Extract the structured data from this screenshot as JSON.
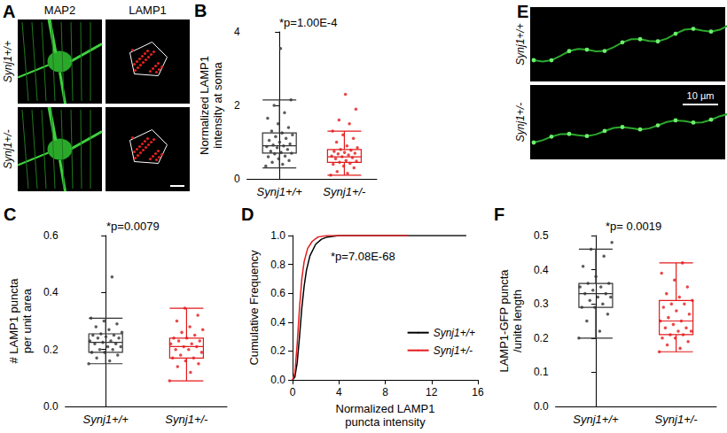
{
  "figure_panels": [
    {
      "panel": "A",
      "columns": [
        "MAP2",
        "LAMP1"
      ],
      "rows": [
        "Synj1+/+",
        "Synj1+/-"
      ]
    },
    {
      "panel": "E",
      "rows": [
        "Synj1+/+",
        "Synj1+/-"
      ],
      "scale_bar": "10 µm"
    }
  ],
  "chart_data": [
    {
      "panel": "B",
      "type": "boxplot",
      "annotation": "*p=1.00E-4",
      "y_label": "Normalized LAMP1\nintensity at soma",
      "categories": [
        "Synj1+/+",
        "Synj1+/-"
      ],
      "colors": [
        "#333333",
        "#e41a1c"
      ],
      "boxes": [
        [
          0.3,
          0.7,
          0.9,
          1.25,
          2.15
        ],
        [
          0.1,
          0.45,
          0.6,
          0.8,
          1.3
        ]
      ],
      "points": [
        [
          0.35,
          0.4,
          0.45,
          0.5,
          0.55,
          0.6,
          0.62,
          0.68,
          0.7,
          0.72,
          0.75,
          0.8,
          0.85,
          0.88,
          0.9,
          0.92,
          0.95,
          1.0,
          1.05,
          1.1,
          1.15,
          1.2,
          1.25,
          1.3,
          1.4,
          1.5,
          1.65,
          1.8,
          2.0,
          2.15,
          3.55
        ],
        [
          0.1,
          0.15,
          0.2,
          0.3,
          0.35,
          0.4,
          0.42,
          0.45,
          0.48,
          0.5,
          0.55,
          0.58,
          0.6,
          0.62,
          0.65,
          0.68,
          0.7,
          0.72,
          0.75,
          0.78,
          0.8,
          0.85,
          0.9,
          1.0,
          1.1,
          1.2,
          1.3,
          1.5,
          1.6,
          1.9,
          2.3
        ]
      ],
      "ylim": [
        0,
        4
      ],
      "yticks": [
        0,
        2,
        4
      ],
      "grid": false
    },
    {
      "panel": "C",
      "type": "boxplot",
      "annotation": "*p=0.0079",
      "y_label": "# LAMP1 puncta\nper unit area",
      "categories": [
        "Synj1+/+",
        "Synj1+/-"
      ],
      "colors": [
        "#333333",
        "#e41a1c"
      ],
      "boxes": [
        [
          0.15,
          0.19,
          0.225,
          0.255,
          0.31
        ],
        [
          0.09,
          0.17,
          0.21,
          0.24,
          0.345
        ]
      ],
      "points": [
        [
          0.15,
          0.16,
          0.17,
          0.18,
          0.19,
          0.19,
          0.2,
          0.2,
          0.21,
          0.21,
          0.22,
          0.22,
          0.225,
          0.23,
          0.23,
          0.24,
          0.24,
          0.245,
          0.25,
          0.25,
          0.255,
          0.26,
          0.27,
          0.28,
          0.29,
          0.3,
          0.31,
          0.455
        ],
        [
          0.09,
          0.12,
          0.14,
          0.15,
          0.16,
          0.17,
          0.17,
          0.18,
          0.19,
          0.2,
          0.2,
          0.21,
          0.21,
          0.22,
          0.22,
          0.23,
          0.23,
          0.24,
          0.24,
          0.25,
          0.26,
          0.27,
          0.28,
          0.3,
          0.32,
          0.345
        ]
      ],
      "ylim": [
        0,
        0.6
      ],
      "yticks": [
        {
          "value": 0,
          "label": "0.0"
        },
        0.2,
        0.4,
        0.6
      ],
      "grid": false
    },
    {
      "panel": "D",
      "type": "line",
      "annotation": "*p=7.08E-68",
      "x_label": "Normalized LAMP1\npuncta intensity",
      "y_label": "Cumulative Frequency",
      "series": [
        {
          "name": "Synj1+/+",
          "color": "#000000",
          "x": [
            0,
            0.2,
            0.4,
            0.6,
            0.8,
            1.0,
            1.2,
            1.5,
            2.0,
            2.5,
            3.0,
            4.0,
            15.0
          ],
          "values": [
            0,
            0.02,
            0.12,
            0.3,
            0.5,
            0.65,
            0.76,
            0.86,
            0.94,
            0.975,
            0.99,
            1.0,
            1.0
          ]
        },
        {
          "name": "Synj1+/-",
          "color": "#e41a1c",
          "x": [
            0,
            0.2,
            0.4,
            0.6,
            0.8,
            1.0,
            1.3,
            1.7,
            2.2,
            3.0,
            10.0
          ],
          "values": [
            0,
            0.05,
            0.25,
            0.5,
            0.7,
            0.82,
            0.91,
            0.96,
            0.99,
            1.0,
            1.0
          ]
        }
      ],
      "xlim": [
        0,
        16
      ],
      "xticks": [
        0,
        4,
        8,
        12,
        16
      ],
      "ylim": [
        0,
        1
      ],
      "yticks": [
        {
          "value": 0,
          "label": "0.0"
        },
        0.2,
        0.4,
        0.6,
        0.8,
        {
          "value": 1,
          "label": "1.0"
        }
      ],
      "legend": "right",
      "grid": false
    },
    {
      "panel": "F",
      "type": "boxplot",
      "annotation": "*p= 0.0019",
      "y_label": "LAMP1-GFP puncta\n/unite length",
      "categories": [
        "Synj1+/+",
        "Synj1+/-"
      ],
      "colors": [
        "#333333",
        "#e41a1c"
      ],
      "boxes": [
        [
          0.2,
          0.29,
          0.33,
          0.36,
          0.46
        ],
        [
          0.16,
          0.21,
          0.25,
          0.31,
          0.42
        ]
      ],
      "points": [
        [
          0.2,
          0.22,
          0.25,
          0.27,
          0.29,
          0.29,
          0.3,
          0.31,
          0.32,
          0.32,
          0.33,
          0.33,
          0.34,
          0.35,
          0.35,
          0.36,
          0.36,
          0.38,
          0.41,
          0.44,
          0.46,
          0.48
        ],
        [
          0.16,
          0.17,
          0.18,
          0.19,
          0.2,
          0.2,
          0.21,
          0.21,
          0.22,
          0.22,
          0.23,
          0.23,
          0.24,
          0.25,
          0.25,
          0.26,
          0.27,
          0.28,
          0.29,
          0.3,
          0.3,
          0.31,
          0.32,
          0.33,
          0.35,
          0.37,
          0.39,
          0.42
        ]
      ],
      "ylim": [
        0,
        0.5
      ],
      "yticks": [
        {
          "value": 0,
          "label": "0.0"
        },
        0.1,
        0.2,
        0.3,
        0.4,
        0.5
      ],
      "grid": false
    }
  ]
}
